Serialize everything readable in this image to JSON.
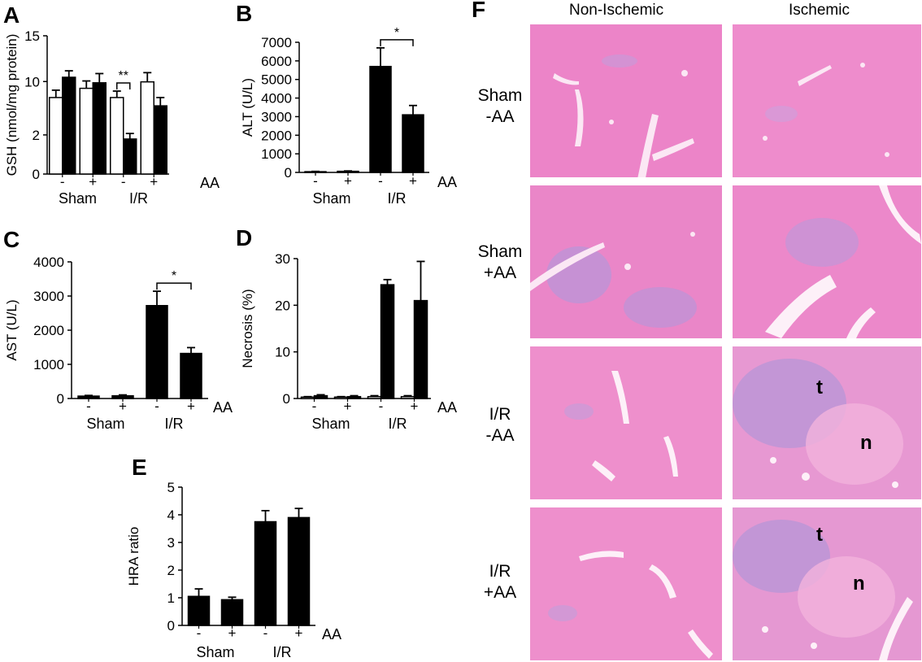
{
  "chart_data": [
    {
      "panel": "A",
      "type": "bar",
      "ylabel": "GSH (nmol/mg protein)",
      "yticks": [
        "0",
        "2",
        "10",
        "15"
      ],
      "ylim": [
        0,
        15
      ],
      "bars": [
        {
          "fill": "white",
          "value": 8.3,
          "err": 0.8
        },
        {
          "fill": "black",
          "value": 10.5,
          "err": 0.7
        },
        {
          "fill": "white",
          "value": 9.3,
          "err": 0.8
        },
        {
          "fill": "black",
          "value": 9.9,
          "err": 1.0
        },
        {
          "fill": "white",
          "value": 8.3,
          "err": 0.7
        },
        {
          "fill": "black",
          "value": 3.8,
          "err": 0.6
        },
        {
          "fill": "white",
          "value": 10.0,
          "err": 1.0
        },
        {
          "fill": "black",
          "value": 7.4,
          "err": 0.9
        }
      ],
      "aa_signs": [
        "-",
        "+",
        "-",
        "+"
      ],
      "groups": [
        "Sham",
        "I/R"
      ],
      "aa_label": "AA",
      "significance": [
        {
          "pair": [
            4,
            5
          ],
          "label": "**"
        }
      ]
    },
    {
      "panel": "B",
      "type": "bar",
      "ylabel": "ALT (U/L)",
      "yticks": [
        "0",
        "1000",
        "2000",
        "3000",
        "4000",
        "5000",
        "6000",
        "7000"
      ],
      "ylim": [
        0,
        7000
      ],
      "bars": [
        {
          "fill": "black",
          "value": 40,
          "err": 15
        },
        {
          "fill": "black",
          "value": 60,
          "err": 20
        },
        {
          "fill": "black",
          "value": 5700,
          "err": 1000
        },
        {
          "fill": "black",
          "value": 3100,
          "err": 500
        }
      ],
      "aa_signs": [
        "-",
        "+",
        "-",
        "+"
      ],
      "groups": [
        "Sham",
        "I/R"
      ],
      "aa_label": "AA",
      "significance": [
        {
          "pair": [
            2,
            3
          ],
          "label": "*"
        }
      ]
    },
    {
      "panel": "C",
      "type": "bar",
      "ylabel": "AST (U/L)",
      "yticks": [
        "0",
        "1000",
        "2000",
        "3000",
        "4000"
      ],
      "ylim": [
        0,
        4000
      ],
      "bars": [
        {
          "fill": "black",
          "value": 70,
          "err": 20
        },
        {
          "fill": "black",
          "value": 80,
          "err": 25
        },
        {
          "fill": "black",
          "value": 2720,
          "err": 420
        },
        {
          "fill": "black",
          "value": 1320,
          "err": 170
        }
      ],
      "aa_signs": [
        "-",
        "+",
        "-",
        "+"
      ],
      "groups": [
        "Sham",
        "I/R"
      ],
      "aa_label": "AA",
      "significance": [
        {
          "pair": [
            2,
            3
          ],
          "label": "*"
        }
      ]
    },
    {
      "panel": "D",
      "type": "bar",
      "ylabel": "Necrosis (%)",
      "yticks": [
        "0",
        "10",
        "20",
        "30"
      ],
      "ylim": [
        0,
        30
      ],
      "bars": [
        {
          "fill": "white",
          "value": 0.3,
          "err": 0.1
        },
        {
          "fill": "black",
          "value": 0.6,
          "err": 0.2
        },
        {
          "fill": "white",
          "value": 0.3,
          "err": 0.1
        },
        {
          "fill": "black",
          "value": 0.4,
          "err": 0.2
        },
        {
          "fill": "white",
          "value": 0.4,
          "err": 0.2
        },
        {
          "fill": "black",
          "value": 24.4,
          "err": 1.1
        },
        {
          "fill": "white",
          "value": 0.4,
          "err": 0.2
        },
        {
          "fill": "black",
          "value": 21.0,
          "err": 8.4
        }
      ],
      "aa_signs": [
        "-",
        "+",
        "-",
        "+"
      ],
      "groups": [
        "Sham",
        "I/R"
      ],
      "aa_label": "AA",
      "significance": []
    },
    {
      "panel": "E",
      "type": "bar",
      "ylabel": "HRA ratio",
      "yticks": [
        "0",
        "1",
        "2",
        "3",
        "4",
        "5"
      ],
      "ylim": [
        0,
        5
      ],
      "bars": [
        {
          "fill": "black",
          "value": 1.05,
          "err": 0.27
        },
        {
          "fill": "black",
          "value": 0.93,
          "err": 0.09
        },
        {
          "fill": "black",
          "value": 3.75,
          "err": 0.4
        },
        {
          "fill": "black",
          "value": 3.9,
          "err": 0.33
        }
      ],
      "aa_signs": [
        "-",
        "+",
        "-",
        "+"
      ],
      "groups": [
        "Sham",
        "I/R"
      ],
      "aa_label": "AA",
      "significance": []
    }
  ],
  "histology": {
    "panel": "F",
    "columns": [
      "Non-Ischemic",
      "Ischemic"
    ],
    "rows": [
      {
        "label1": "Sham",
        "label2": "-AA"
      },
      {
        "label1": "Sham",
        "label2": "+AA"
      },
      {
        "label1": "I/R",
        "label2": "-AA"
      },
      {
        "label1": "I/R",
        "label2": "+AA"
      }
    ],
    "annotations": {
      "tissue": "t",
      "necrosis": "n"
    }
  }
}
